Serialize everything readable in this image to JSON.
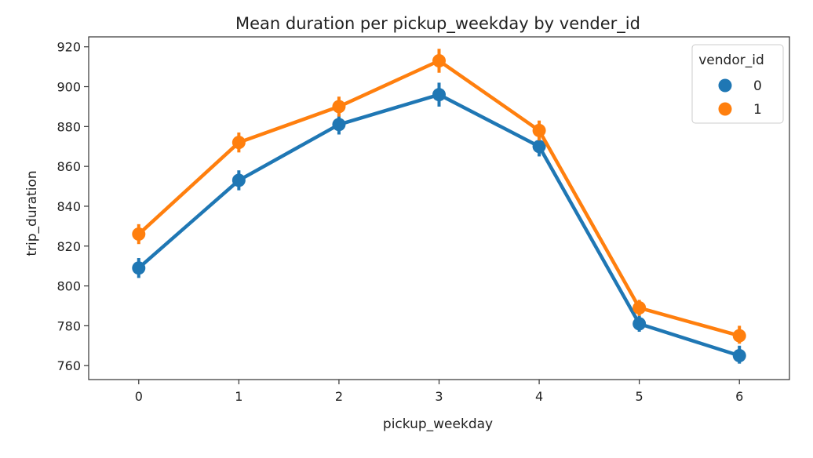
{
  "chart_data": {
    "type": "line",
    "title": "Mean duration per pickup_weekday by vender_id",
    "xlabel": "pickup_weekday",
    "ylabel": "trip_duration",
    "categories": [
      "0",
      "1",
      "2",
      "3",
      "4",
      "5",
      "6"
    ],
    "ylim": [
      753,
      925
    ],
    "yticks": [
      760,
      780,
      800,
      820,
      840,
      860,
      880,
      900,
      920
    ],
    "grid": false,
    "legend": {
      "title": "vendor_id",
      "placement": "top-right"
    },
    "series": [
      {
        "name": "0",
        "color": "#1f77b4",
        "values": [
          809,
          853,
          881,
          896,
          870,
          781,
          765
        ],
        "error_low": [
          804,
          848,
          876,
          890,
          865,
          777,
          761
        ],
        "error_high": [
          814,
          858,
          886,
          902,
          875,
          785,
          770
        ]
      },
      {
        "name": "1",
        "color": "#ff7f0e",
        "values": [
          826,
          872,
          890,
          913,
          878,
          789,
          775
        ],
        "error_low": [
          821,
          867,
          885,
          907,
          873,
          785,
          771
        ],
        "error_high": [
          831,
          877,
          895,
          919,
          883,
          793,
          780
        ]
      }
    ]
  }
}
